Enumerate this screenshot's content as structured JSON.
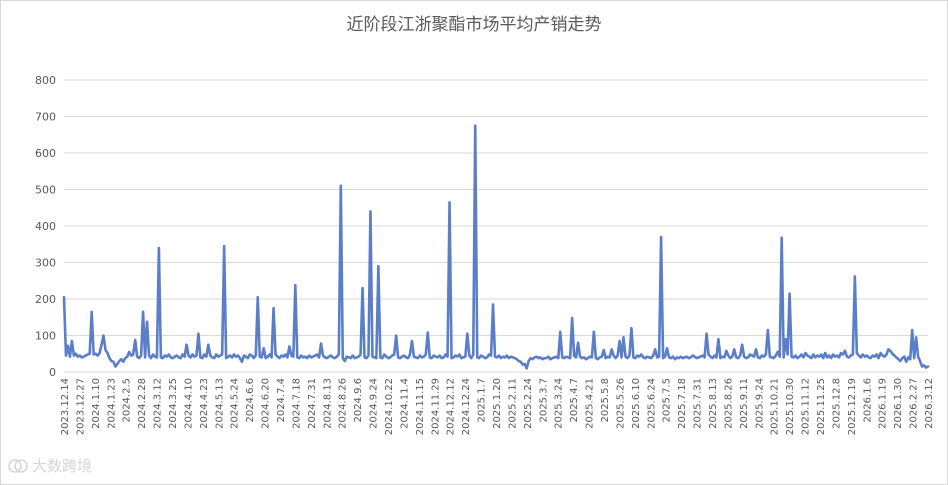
{
  "title": "近阶段江浙聚酯市场平均产销走势",
  "watermark": "大数跨境",
  "colors": {
    "line": "#5b7ec8",
    "grid": "#d9d9d9",
    "text": "#595959"
  },
  "chart_data": {
    "type": "line",
    "title": "近阶段江浙聚酯市场平均产销走势",
    "xlabel": "",
    "ylabel": "",
    "ylim": [
      0,
      800
    ],
    "yticks": [
      0,
      100,
      200,
      300,
      400,
      500,
      600,
      700,
      800
    ],
    "grid": true,
    "legend": "none",
    "xtick_labels": [
      "2023.12.14",
      "2023.12.27",
      "2024.1.10",
      "2024.1.23",
      "2024.2.5",
      "2024.2.28",
      "2024.3.12",
      "2024.3.25",
      "2024.4.10",
      "2024.4.23",
      "2024.5.13",
      "2024.5.24",
      "2024.6.6",
      "2024.6.20",
      "2024.7.4",
      "2024.7.18",
      "2024.7.31",
      "2024.8.13",
      "2024.8.26",
      "2024.9.6",
      "2024.9.24",
      "2024.10.22",
      "2024.11.4",
      "2024.11.15",
      "2024.11.29",
      "2024.12.12",
      "2024.12.24",
      "2025.1.7",
      "2025.1.20",
      "2025.2.11",
      "2025.2.24",
      "2025.3.7",
      "2025.3.24",
      "2025.4.7",
      "2025.4.21",
      "2025.5.8",
      "2025.5.26",
      "2025.6.10",
      "2025.6.24",
      "2025.7.5",
      "2025.7.18",
      "2025.7.31",
      "2025.8.13",
      "2025.8.26",
      "2025.9.11",
      "2025.9.24",
      "2025.10.21",
      "2025.10.30",
      "2025.11.12",
      "2025.11.25",
      "2025.12.8",
      "2025.12.19",
      "2026.1.6",
      "2026.1.19",
      "2026.1.30",
      "2026.2.27",
      "2026.3.12"
    ],
    "series": [
      {
        "values": [
          205,
          45,
          72,
          42,
          85,
          45,
          50,
          42,
          45,
          40,
          42,
          45,
          48,
          50,
          165,
          48,
          50,
          45,
          52,
          75,
          100,
          60,
          52,
          38,
          30,
          28,
          15,
          22,
          30,
          35,
          28,
          38,
          42,
          55,
          45,
          48,
          88,
          42,
          38,
          45,
          165,
          40,
          138,
          45,
          38,
          48,
          42,
          40,
          340,
          40,
          38,
          45,
          42,
          48,
          40,
          38,
          42,
          45,
          40,
          38,
          48,
          42,
          75,
          45,
          40,
          48,
          42,
          45,
          105,
          40,
          38,
          48,
          42,
          75,
          45,
          40,
          38,
          48,
          42,
          45,
          48,
          345,
          38,
          42,
          45,
          40,
          48,
          42,
          45,
          38,
          28,
          45,
          42,
          38,
          48,
          45,
          38,
          45,
          205,
          42,
          40,
          65,
          38,
          42,
          48,
          40,
          175,
          48,
          42,
          38,
          45,
          42,
          48,
          40,
          70,
          45,
          42,
          238,
          40,
          38,
          45,
          40,
          42,
          38,
          45,
          40,
          42,
          45,
          48,
          40,
          78,
          45,
          40,
          38,
          42,
          45,
          40,
          38,
          42,
          48,
          510,
          38,
          30,
          42,
          40,
          38,
          45,
          38,
          40,
          42,
          48,
          230,
          40,
          38,
          45,
          440,
          42,
          40,
          38,
          290,
          40,
          38,
          48,
          42,
          38,
          40,
          45,
          48,
          100,
          40,
          38,
          42,
          45,
          40,
          38,
          48,
          85,
          42,
          40,
          38,
          45,
          40,
          42,
          48,
          108,
          40,
          38,
          45,
          42,
          40,
          45,
          38,
          40,
          48,
          42,
          465,
          38,
          40,
          45,
          42,
          48,
          38,
          40,
          42,
          105,
          45,
          38,
          48,
          675,
          40,
          38,
          45,
          42,
          38,
          40,
          48,
          45,
          185,
          42,
          40,
          45,
          38,
          42,
          40,
          45,
          38,
          42,
          40,
          38,
          35,
          30,
          28,
          20,
          22,
          10,
          30,
          38,
          35,
          40,
          42,
          38,
          40,
          35,
          38,
          38,
          42,
          35,
          38,
          40,
          42,
          38,
          110,
          40,
          38,
          42,
          40,
          38,
          148,
          45,
          40,
          80,
          42,
          38,
          40,
          35,
          38,
          42,
          40,
          110,
          38,
          35,
          40,
          42,
          60,
          38,
          42,
          40,
          62,
          45,
          38,
          45,
          85,
          40,
          95,
          42,
          38,
          45,
          120,
          40,
          38,
          45,
          42,
          48,
          40,
          38,
          42,
          40,
          38,
          45,
          62,
          40,
          42,
          370,
          38,
          42,
          65,
          40,
          38,
          42,
          35,
          40,
          38,
          42,
          38,
          40,
          42,
          38,
          40,
          45,
          42,
          38,
          40,
          42,
          45,
          40,
          105,
          48,
          42,
          38,
          45,
          40,
          90,
          38,
          42,
          40,
          58,
          45,
          38,
          42,
          62,
          40,
          38,
          45,
          75,
          42,
          38,
          40,
          48,
          45,
          42,
          62,
          40,
          38,
          45,
          42,
          48,
          115,
          42,
          40,
          38,
          45,
          55,
          42,
          368,
          40,
          90,
          48,
          215,
          42,
          40,
          45,
          38,
          42,
          48,
          40,
          52,
          45,
          42,
          38,
          48,
          40,
          45,
          42,
          48,
          38,
          52,
          40,
          45,
          38,
          48,
          42,
          45,
          40,
          52,
          48,
          58,
          42,
          40,
          45,
          48,
          262,
          52,
          45,
          40,
          48,
          42,
          45,
          40,
          38,
          45,
          42,
          48,
          38,
          52,
          45,
          42,
          48,
          62,
          58,
          50,
          45,
          40,
          35,
          30,
          38,
          42,
          28,
          40,
          35,
          115,
          38,
          95,
          42,
          30,
          15,
          18,
          12,
          15
        ]
      }
    ]
  }
}
